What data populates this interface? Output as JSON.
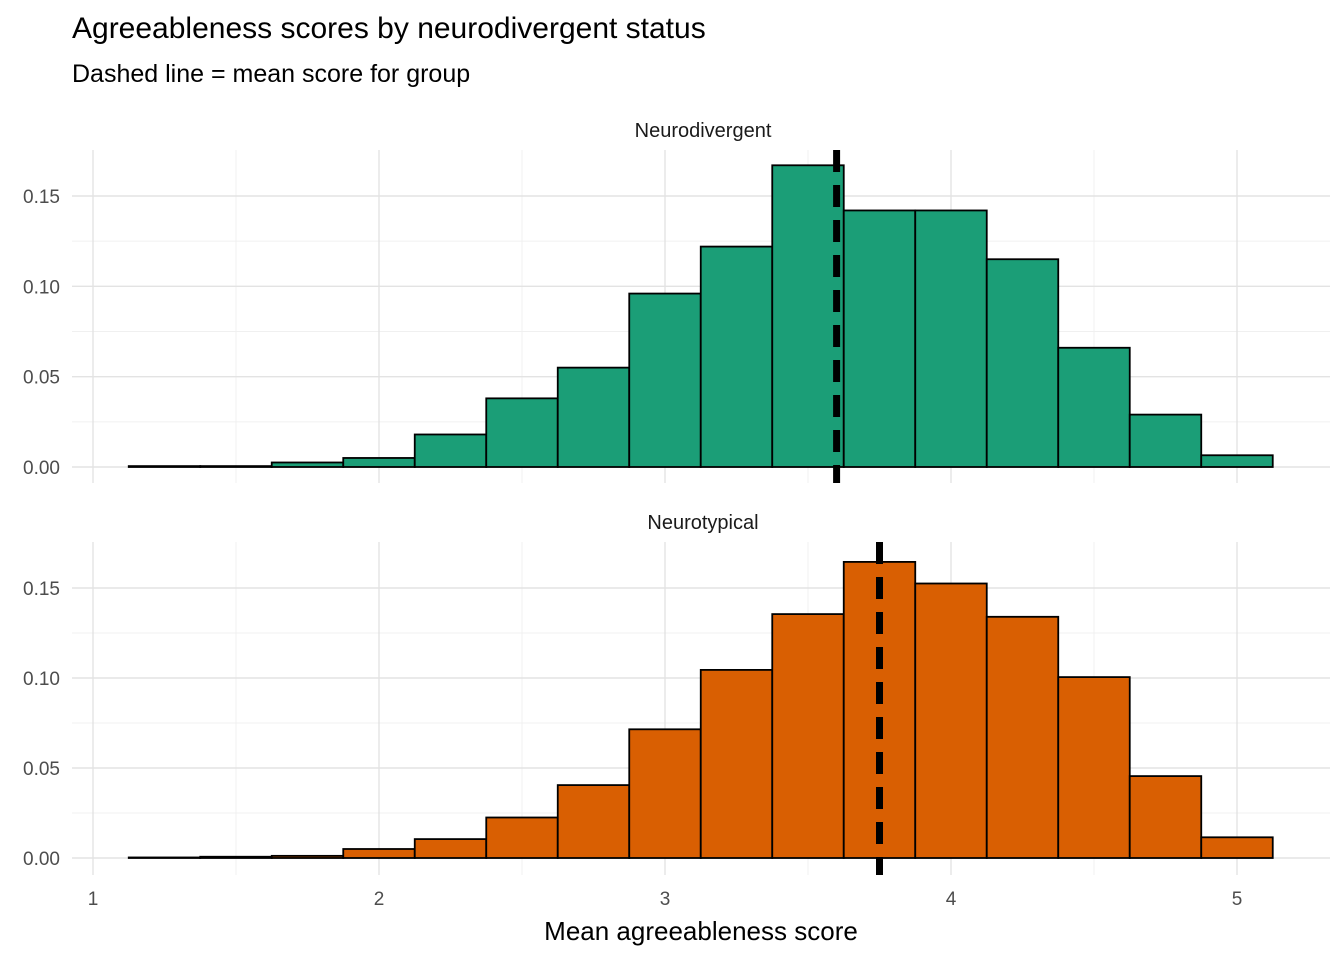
{
  "title": "Agreeableness scores by neurodivergent status",
  "subtitle": "Dashed line = mean score for group",
  "chart_data": {
    "type": "bar",
    "title": "Agreeableness scores by neurodivergent status",
    "subtitle": "Dashed line = mean score for group",
    "xlabel": "Mean agreeableness score",
    "ylabel": "",
    "xlim": [
      0.95,
      5.3
    ],
    "ylim": [
      -0.008,
      0.175
    ],
    "x_ticks": [
      "1",
      "2",
      "3",
      "4",
      "5"
    ],
    "y_ticks": [
      "0.00",
      "0.05",
      "0.10",
      "0.15"
    ],
    "grid": true,
    "bin_width": 0.25,
    "bin_starts": [
      1.125,
      1.375,
      1.625,
      1.875,
      2.125,
      2.375,
      2.625,
      2.875,
      3.125,
      3.375,
      3.625,
      3.875,
      4.125,
      4.375,
      4.625,
      4.875
    ],
    "panels": [
      {
        "label": "Neurodivergent",
        "fill": "#1B9E77",
        "mean": 3.6,
        "values": [
          0.0005,
          0.0005,
          0.0025,
          0.005,
          0.018,
          0.038,
          0.055,
          0.096,
          0.122,
          0.167,
          0.142,
          0.142,
          0.115,
          0.066,
          0.029,
          0.0065
        ]
      },
      {
        "label": "Neurotypical",
        "fill": "#D95F02",
        "mean": 3.75,
        "values": [
          0.0003,
          0.0007,
          0.0012,
          0.005,
          0.0105,
          0.0225,
          0.0405,
          0.0715,
          0.1045,
          0.1355,
          0.1645,
          0.1525,
          0.134,
          0.1005,
          0.0455,
          0.0115
        ]
      }
    ]
  }
}
